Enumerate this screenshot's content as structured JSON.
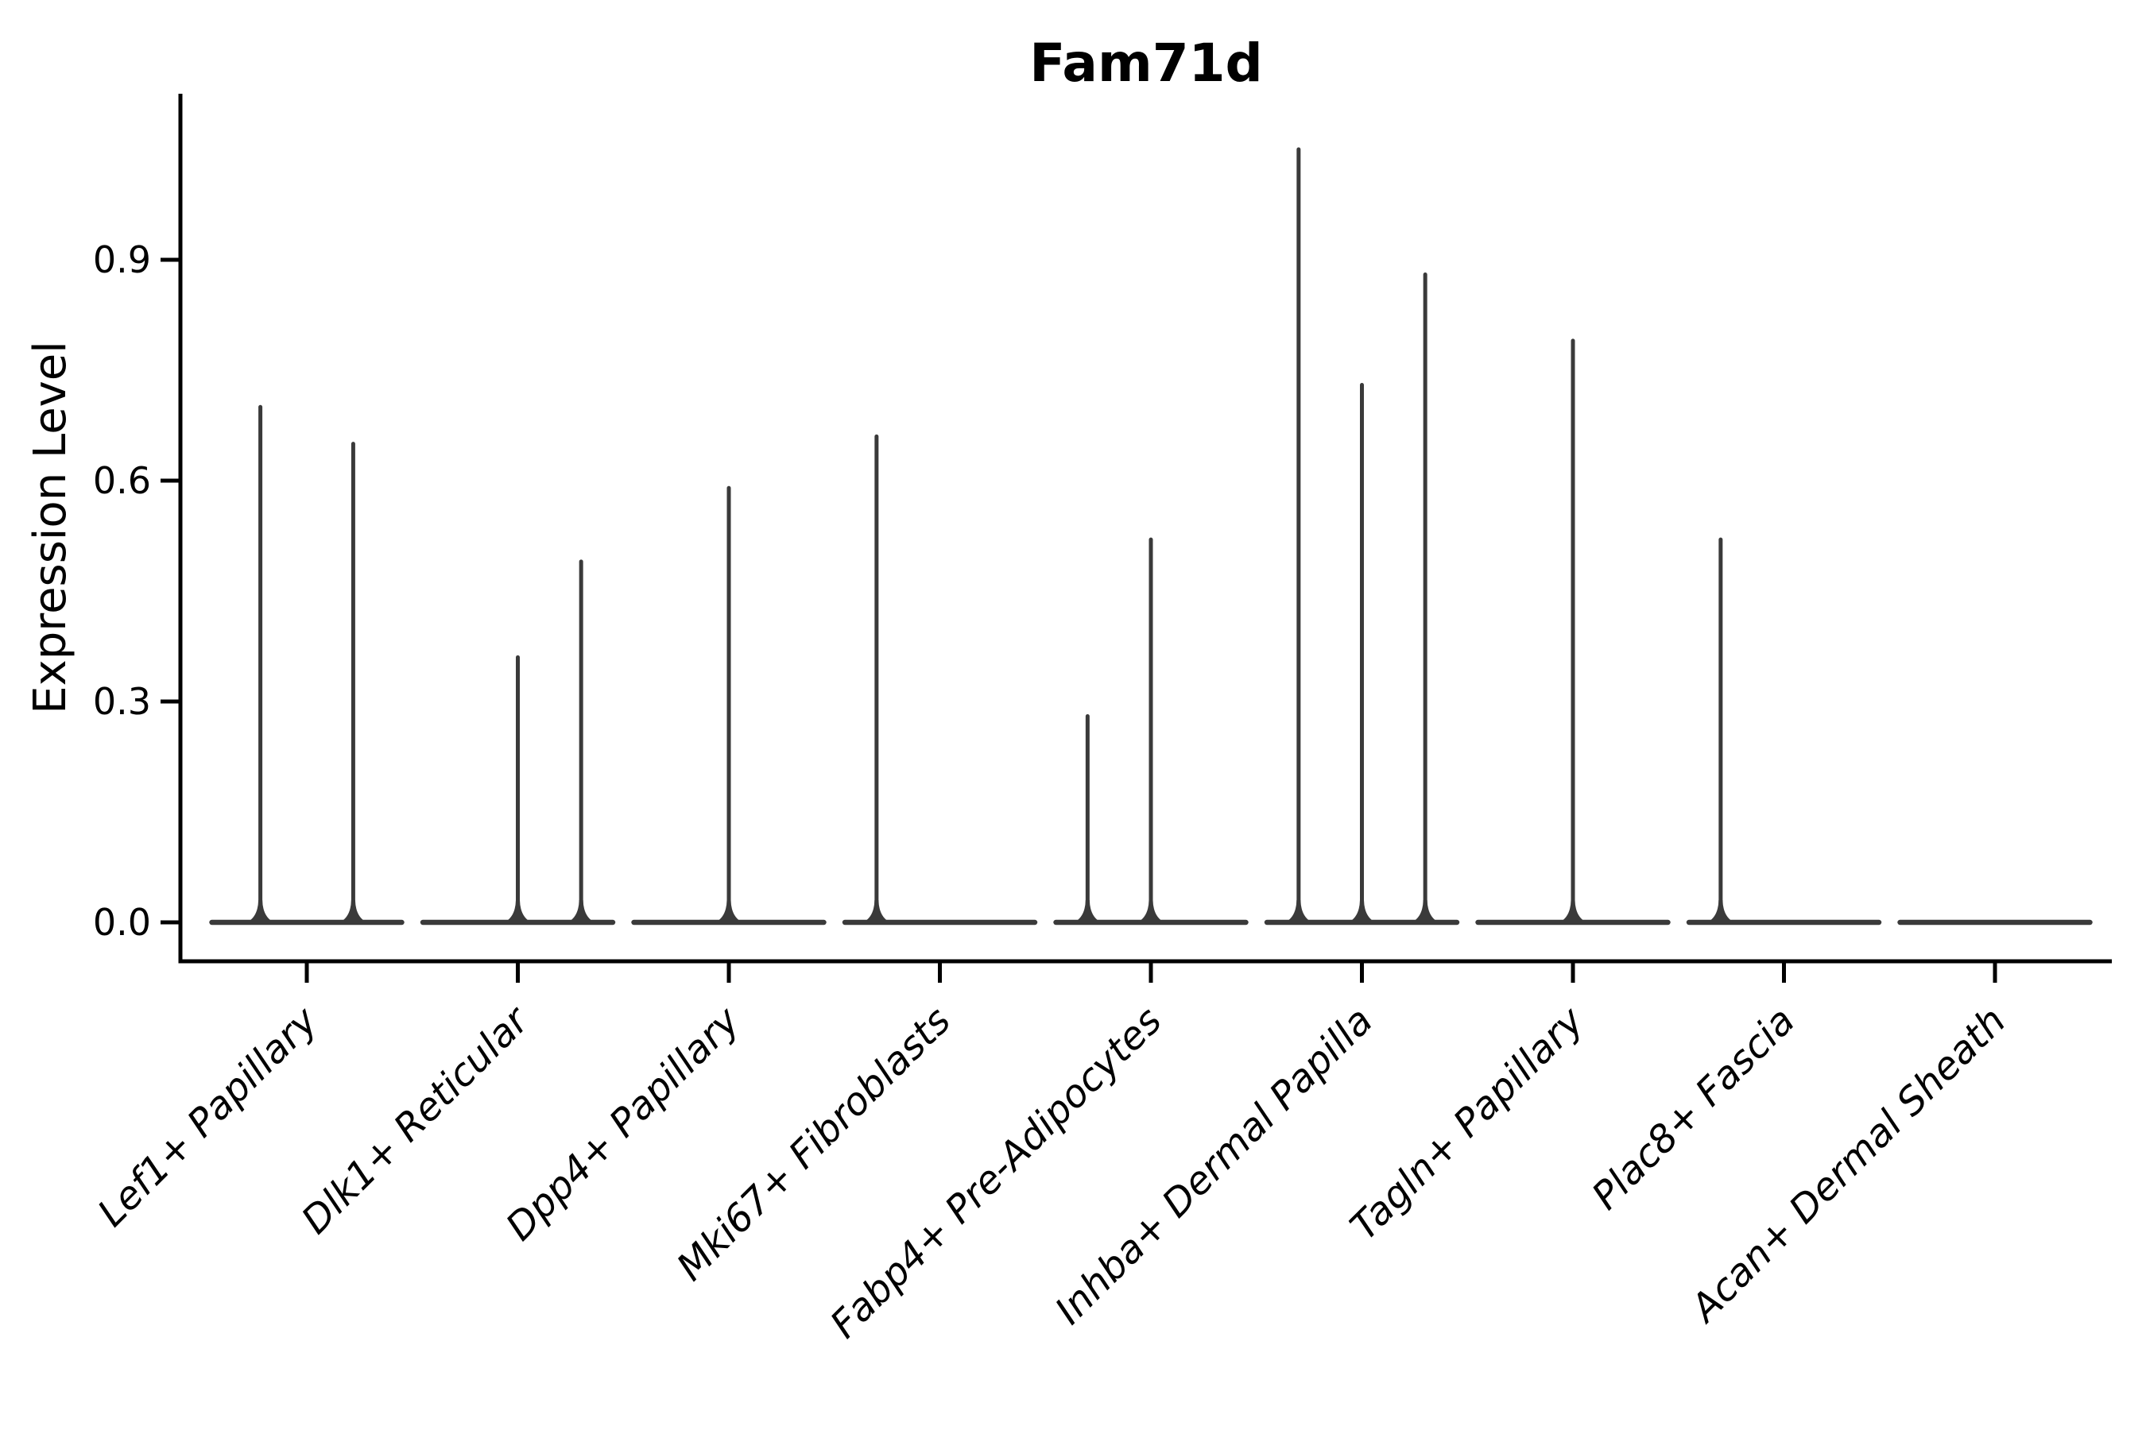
{
  "figure": {
    "background": "#ffffff"
  },
  "title": "Fam71d",
  "y_axis": {
    "label": "Expression Level",
    "tick_labels": [
      "0.0",
      "0.3",
      "0.6",
      "0.9"
    ]
  },
  "x_axis": {
    "categories": [
      "Lef1+ Papillary",
      "Dlk1+ Reticular",
      "Dpp4+ Papillary",
      "Mki67+ Fibroblasts",
      "Fabp4+ Pre-Adipocytes",
      "Inhba+ Dermal Papilla",
      "Tagln+ Papillary",
      "Plac8+ Fascia",
      "Acan+ Dermal Sheath"
    ]
  },
  "style": {
    "ink": "#3a3a3a",
    "axis_color": "#000000"
  },
  "chart_data": {
    "type": "violin",
    "title": "Fam71d",
    "ylabel": "Expression Level",
    "xlabel": "",
    "ylim": [
      -0.05,
      1.13
    ],
    "yticks": [
      0,
      0.3,
      0.6,
      0.9
    ],
    "ytick_labels": [
      "0.0",
      "0.3",
      "0.6",
      "0.9"
    ],
    "grid": false,
    "legend": null,
    "violin_halfwidth": 0.45,
    "x_tick_rotation_deg": 45,
    "categories": [
      "Lef1+ Papillary",
      "Dlk1+ Reticular",
      "Dpp4+ Papillary",
      "Mki67+ Fibroblasts",
      "Fabp4+ Pre-Adipocytes",
      "Inhba+ Dermal Papilla",
      "Tagln+ Papillary",
      "Plac8+ Fascia",
      "Acan+ Dermal Sheath"
    ],
    "series": [
      {
        "name": "Lef1+ Papillary",
        "baseline_value": 0,
        "spikes": [
          {
            "dx": -0.22,
            "value": 0.7
          },
          {
            "dx": 0.22,
            "value": 0.65
          }
        ]
      },
      {
        "name": "Dlk1+ Reticular",
        "baseline_value": 0,
        "spikes": [
          {
            "dx": 0.0,
            "value": 0.36
          },
          {
            "dx": 0.3,
            "value": 0.49
          }
        ]
      },
      {
        "name": "Dpp4+ Papillary",
        "baseline_value": 0,
        "spikes": [
          {
            "dx": 0.0,
            "value": 0.59
          }
        ]
      },
      {
        "name": "Mki67+ Fibroblasts",
        "baseline_value": 0,
        "spikes": [
          {
            "dx": -0.3,
            "value": 0.66
          }
        ]
      },
      {
        "name": "Fabp4+ Pre-Adipocytes",
        "baseline_value": 0,
        "spikes": [
          {
            "dx": -0.3,
            "value": 0.28
          },
          {
            "dx": 0.0,
            "value": 0.52
          }
        ]
      },
      {
        "name": "Inhba+ Dermal Papilla",
        "baseline_value": 0,
        "spikes": [
          {
            "dx": -0.3,
            "value": 1.05
          },
          {
            "dx": 0.0,
            "value": 0.73
          },
          {
            "dx": 0.3,
            "value": 0.88
          }
        ]
      },
      {
        "name": "Tagln+ Papillary",
        "baseline_value": 0,
        "spikes": [
          {
            "dx": 0.0,
            "value": 0.79
          }
        ]
      },
      {
        "name": "Plac8+ Fascia",
        "baseline_value": 0,
        "spikes": [
          {
            "dx": -0.3,
            "value": 0.52
          }
        ]
      },
      {
        "name": "Acan+ Dermal Sheath",
        "baseline_value": 0,
        "spikes": []
      }
    ]
  }
}
